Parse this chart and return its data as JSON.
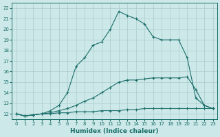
{
  "xlabel": "Humidex (Indice chaleur)",
  "bg_color": "#cce8e8",
  "grid_color": "#aacccc",
  "line_color": "#1a6e6a",
  "xlim": [
    -0.5,
    23.5
  ],
  "ylim": [
    11.5,
    22.5
  ],
  "xticks": [
    0,
    1,
    2,
    3,
    4,
    5,
    6,
    7,
    8,
    9,
    10,
    11,
    12,
    13,
    14,
    15,
    16,
    17,
    18,
    19,
    20,
    21,
    22,
    23
  ],
  "yticks": [
    12,
    13,
    14,
    15,
    16,
    17,
    18,
    19,
    20,
    21,
    22
  ],
  "line1_x": [
    0,
    1,
    2,
    3,
    4,
    5,
    6,
    7,
    8,
    9,
    10,
    11,
    12,
    13,
    14,
    15,
    16,
    17,
    18,
    19,
    20,
    21,
    22,
    23
  ],
  "line1_y": [
    12.0,
    11.8,
    11.9,
    12.0,
    12.0,
    12.1,
    12.1,
    12.2,
    12.2,
    12.2,
    12.3,
    12.3,
    12.3,
    12.4,
    12.4,
    12.5,
    12.5,
    12.5,
    12.5,
    12.5,
    12.5,
    12.5,
    12.5,
    12.5
  ],
  "line2_x": [
    0,
    1,
    2,
    3,
    4,
    5,
    6,
    7,
    8,
    9,
    10,
    11,
    12,
    13,
    14,
    15,
    16,
    17,
    18,
    19,
    20,
    21,
    22,
    23
  ],
  "line2_y": [
    12.0,
    11.8,
    11.9,
    12.0,
    12.1,
    12.3,
    12.5,
    12.8,
    13.2,
    13.5,
    14.0,
    14.5,
    15.0,
    15.2,
    15.2,
    15.3,
    15.4,
    15.4,
    15.4,
    15.4,
    15.5,
    14.3,
    12.8,
    12.5
  ],
  "line3_x": [
    0,
    1,
    2,
    3,
    4,
    5,
    6,
    7,
    8,
    9,
    10,
    11,
    12,
    13,
    14,
    15,
    16,
    17,
    18,
    19,
    20,
    21,
    22,
    23
  ],
  "line3_y": [
    12.0,
    11.8,
    11.9,
    12.0,
    12.3,
    12.8,
    14.0,
    16.5,
    17.3,
    18.5,
    18.8,
    20.0,
    21.7,
    21.3,
    21.0,
    20.5,
    19.3,
    19.0,
    19.0,
    19.0,
    17.3,
    13.5,
    12.8,
    12.5
  ]
}
